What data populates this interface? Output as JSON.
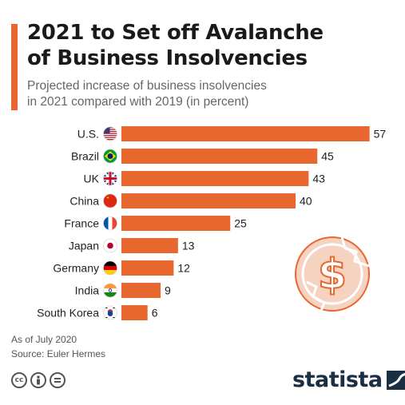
{
  "header": {
    "title_line1": "2021 to Set off Avalanche",
    "title_line2": "of Business Insolvencies",
    "subtitle_line1": "Projected increase of business insolvencies",
    "subtitle_line2": "in 2021 compared with 2019 (in percent)"
  },
  "footer": {
    "note": "As of July 2020",
    "source": "Source: Euler Hermes",
    "cc_icons": [
      "cc-icon",
      "attribution-icon",
      "no-derivatives-icon"
    ],
    "brand": "statista"
  },
  "colors": {
    "bar": "#e8672f",
    "accent": "#e8672f",
    "brand": "#1a2e44"
  },
  "chart_data": {
    "type": "bar",
    "orientation": "horizontal",
    "categories": [
      "U.S.",
      "Brazil",
      "UK",
      "China",
      "France",
      "Japan",
      "Germany",
      "India",
      "South Korea"
    ],
    "values": [
      57,
      45,
      43,
      40,
      25,
      13,
      12,
      9,
      6
    ],
    "flags": [
      "flag-us-icon",
      "flag-brazil-icon",
      "flag-uk-icon",
      "flag-china-icon",
      "flag-france-icon",
      "flag-japan-icon",
      "flag-germany-icon",
      "flag-india-icon",
      "flag-south-korea-icon"
    ],
    "title": "2021 to Set off Avalanche of Business Insolvencies",
    "xlabel": "",
    "ylabel": "",
    "grid": false,
    "legend": "none"
  }
}
